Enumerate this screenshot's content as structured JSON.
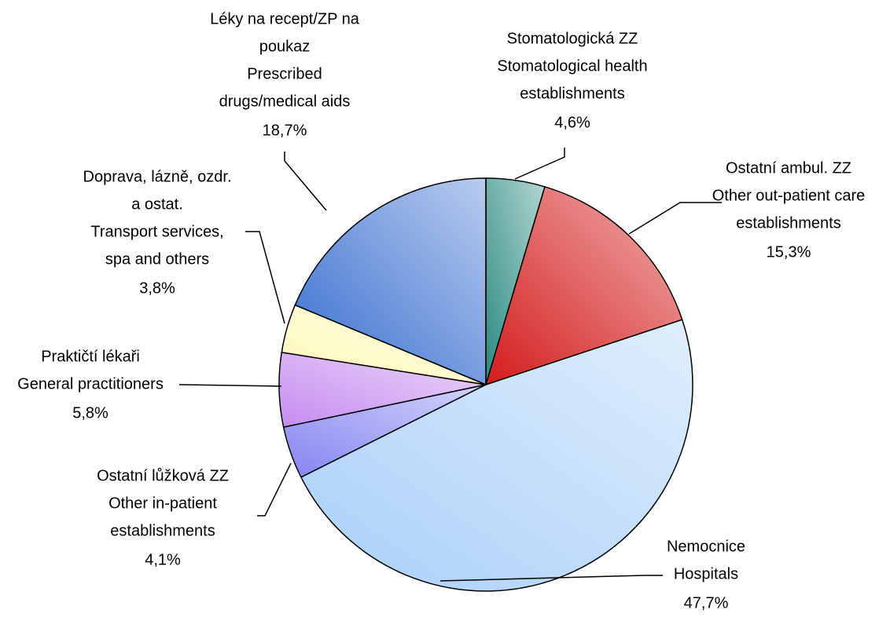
{
  "chart_data": {
    "type": "pie",
    "categories": [
      [
        "Stomatologická ZZ",
        "Stomatological health",
        "establishments"
      ],
      [
        "Ostatní ambul. ZZ",
        "Other out-patient care",
        "establishments"
      ],
      [
        "Nemocnice",
        "Hospitals"
      ],
      [
        "Ostatní lůžková ZZ",
        "Other in-patient",
        "establishments"
      ],
      [
        "Praktičtí lékaři",
        "General practitioners"
      ],
      [
        "Doprava, lázně, ozdr.",
        "a ostat.",
        "Transport services,",
        "spa and others"
      ],
      [
        "Léky na recept/ZP na",
        "poukaz",
        "Prescribed",
        "drugs/medical aids"
      ]
    ],
    "values": [
      4.6,
      15.3,
      47.7,
      4.1,
      5.8,
      3.8,
      18.7
    ],
    "value_labels": [
      "4,6%",
      "15,3%",
      "47,7%",
      "4,1%",
      "5,8%",
      "3,8%",
      "18,7%"
    ],
    "colors": [
      "#2a8a80",
      "#d41c1c",
      "#a8cff8",
      "#8484f2",
      "#c68cf0",
      "#fff8b8",
      "#356ccf"
    ]
  }
}
